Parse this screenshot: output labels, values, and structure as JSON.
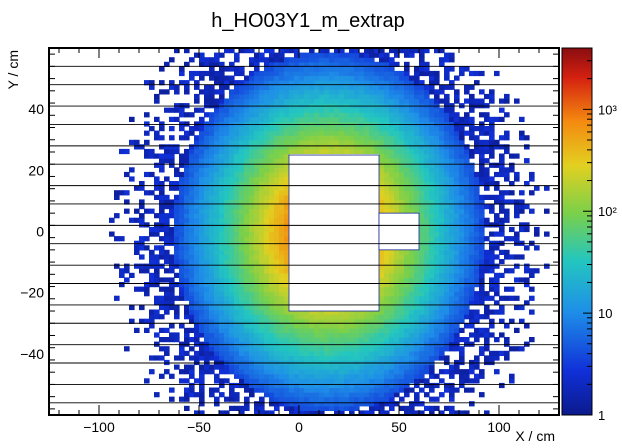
{
  "chart_data": {
    "type": "heatmap",
    "title": "h_HO03Y1_m_extrap",
    "xlabel": "X / cm",
    "ylabel": "Y / cm",
    "xlim": [
      -125,
      130
    ],
    "ylim": [
      -60,
      60
    ],
    "x_ticks": [
      -100,
      -50,
      0,
      50,
      100
    ],
    "x_tick_labels": [
      "−100",
      "−50",
      "0",
      "50",
      "100"
    ],
    "y_ticks": [
      -40,
      -20,
      0,
      20,
      40
    ],
    "y_tick_labels": [
      "−40",
      "−20",
      "0",
      "20",
      "40"
    ],
    "colorbar": {
      "scale": "log",
      "range": [
        1,
        4000
      ],
      "ticks": [
        1,
        10,
        100,
        1000
      ],
      "tick_labels": [
        "1",
        "10",
        "10²",
        "10³"
      ]
    },
    "horizontal_lines_y": [
      -56,
      -50,
      -43,
      -37,
      -30,
      -24,
      -17,
      -11,
      -4,
      2,
      9,
      15,
      22,
      28,
      35,
      41,
      48,
      54
    ],
    "empty_regions": [
      {
        "x": [
          -5,
          40
        ],
        "y": [
          -26,
          25
        ]
      },
      {
        "x": [
          40,
          60
        ],
        "y": [
          -6,
          6
        ]
      }
    ],
    "hotspot": {
      "x": 15,
      "y": 0
    }
  }
}
